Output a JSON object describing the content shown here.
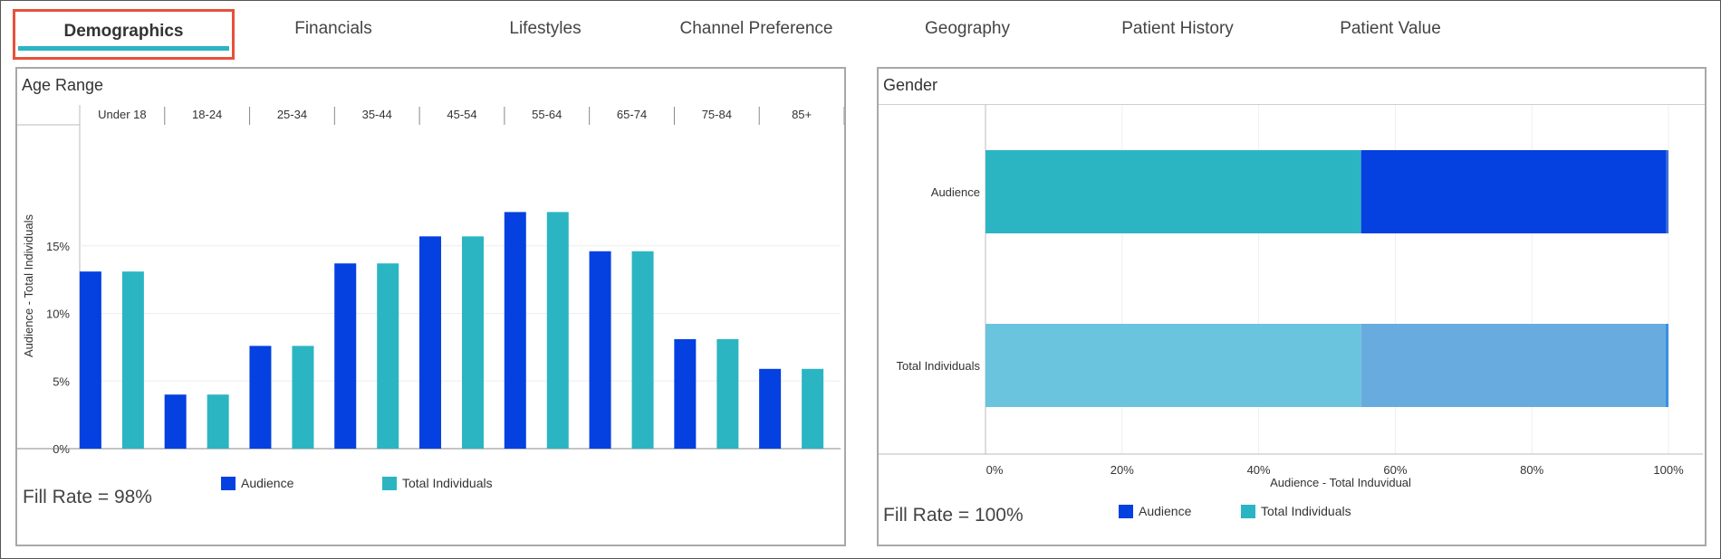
{
  "tabs": [
    {
      "label": "Demographics",
      "active": true
    },
    {
      "label": "Financials"
    },
    {
      "label": "Lifestyles"
    },
    {
      "label": "Channel Preference"
    },
    {
      "label": "Geography"
    },
    {
      "label": "Patient History"
    },
    {
      "label": "Patient Value"
    }
  ],
  "colors": {
    "audience": "#0540e0",
    "total_individuals": "#2bb5c2",
    "gender_total_segment1": "#6ac4de",
    "gender_total_segment2": "#68acdf",
    "gender_total_segment3": "#3b8fe6",
    "active_tab_border": "#e8503a"
  },
  "age_panel": {
    "title": "Age Range",
    "fill_rate": "Fill Rate = 98%",
    "legend": {
      "audience": "Audience",
      "total": "Total Individuals"
    }
  },
  "gender_panel": {
    "title": "Gender",
    "fill_rate": "Fill Rate = 100%",
    "legend": {
      "audience": "Audience",
      "total": "Total Individuals"
    }
  },
  "chart_data": [
    {
      "type": "bar",
      "title": "Age Range",
      "categories": [
        "Under 18",
        "18-24",
        "25-34",
        "35-44",
        "45-54",
        "55-64",
        "65-74",
        "75-84",
        "85+"
      ],
      "series": [
        {
          "name": "Audience",
          "values": [
            13.1,
            4.0,
            7.6,
            13.7,
            15.7,
            17.5,
            14.6,
            8.1,
            5.9
          ]
        },
        {
          "name": "Total Individuals",
          "values": [
            13.1,
            4.0,
            7.6,
            13.7,
            15.7,
            17.5,
            14.6,
            8.1,
            5.9
          ]
        }
      ],
      "ylabel": "Audience - Total Individuals",
      "ylim": [
        0,
        19
      ],
      "yticks": [
        "0%",
        "5%",
        "10%",
        "15%"
      ],
      "ytick_values": [
        0,
        5,
        10,
        15
      ],
      "legend": "bottom"
    },
    {
      "type": "bar",
      "orientation": "horizontal",
      "stacked": true,
      "title": "Gender",
      "categories": [
        "Audience",
        "Total Individuals"
      ],
      "segments": [
        {
          "values": [
            55,
            55
          ]
        },
        {
          "values": [
            44.7,
            44.6
          ]
        },
        {
          "values": [
            0.3,
            0.4
          ]
        }
      ],
      "xlabel": "Audience - Total Induvidual",
      "xlim": [
        0,
        100
      ],
      "xticks": [
        "0%",
        "20%",
        "40%",
        "60%",
        "80%",
        "100%"
      ],
      "xtick_values": [
        0,
        20,
        40,
        60,
        80,
        100
      ],
      "legend": "bottom"
    }
  ]
}
